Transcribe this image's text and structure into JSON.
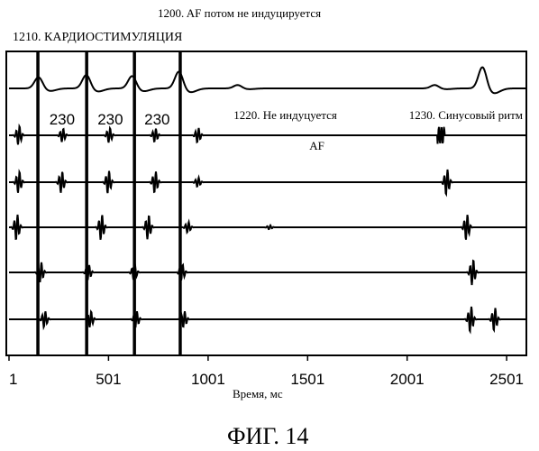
{
  "chart_data": {
    "type": "line",
    "title": "1200. AF потом не индуцируется",
    "subtitle": "1210. КАРДИОСТИМУЛЯЦИЯ",
    "xlabel": "Время, мс",
    "ylabel": "",
    "xlim": [
      1,
      2600
    ],
    "xticks": [
      "1",
      "501",
      "1001",
      "1501",
      "2001",
      "2501"
    ],
    "xtick_values": [
      1,
      501,
      1001,
      1501,
      2001,
      2501
    ],
    "grid": false,
    "pacing_marks_ms": [
      145,
      390,
      630,
      860
    ],
    "pacing_labels": [
      "230",
      "230",
      "230"
    ],
    "annotations": [
      {
        "text": "1220. Не индуцуется",
        "x": 1130
      },
      {
        "text": "AF",
        "x": 1510
      },
      {
        "text": "1230. Синусовый ритм",
        "x": 2010
      }
    ],
    "series": [
      {
        "events": [
          [
            150,
            0.5
          ],
          [
            390,
            0.6
          ],
          [
            620,
            0.55
          ],
          [
            855,
            0.75
          ],
          [
            1150,
            0.15
          ],
          [
            2140,
            0.15
          ],
          [
            2380,
            0.95
          ]
        ]
      },
      {
        "events": [
          [
            50,
            0.7
          ],
          [
            270,
            0.5
          ],
          [
            505,
            0.55
          ],
          [
            735,
            0.5
          ],
          [
            950,
            0.55
          ],
          [
            2170,
            0.95
          ]
        ]
      },
      {
        "events": [
          [
            50,
            0.8
          ],
          [
            265,
            0.8
          ],
          [
            500,
            0.85
          ],
          [
            735,
            0.8
          ],
          [
            950,
            0.35
          ],
          [
            2200,
            0.95
          ]
        ]
      },
      {
        "events": [
          [
            40,
            0.95
          ],
          [
            465,
            0.95
          ],
          [
            700,
            0.9
          ],
          [
            900,
            0.4
          ],
          [
            1310,
            0.15
          ],
          [
            2300,
            0.95
          ]
        ]
      },
      {
        "events": [
          [
            160,
            0.75
          ],
          [
            400,
            0.55
          ],
          [
            630,
            0.55
          ],
          [
            870,
            0.6
          ],
          [
            2330,
            0.95
          ]
        ]
      },
      {
        "events": [
          [
            180,
            0.6
          ],
          [
            410,
            0.6
          ],
          [
            640,
            0.6
          ],
          [
            880,
            0.6
          ],
          [
            2320,
            0.95
          ],
          [
            2440,
            0.85
          ]
        ]
      }
    ]
  },
  "figure_label": "ФИГ. 14"
}
